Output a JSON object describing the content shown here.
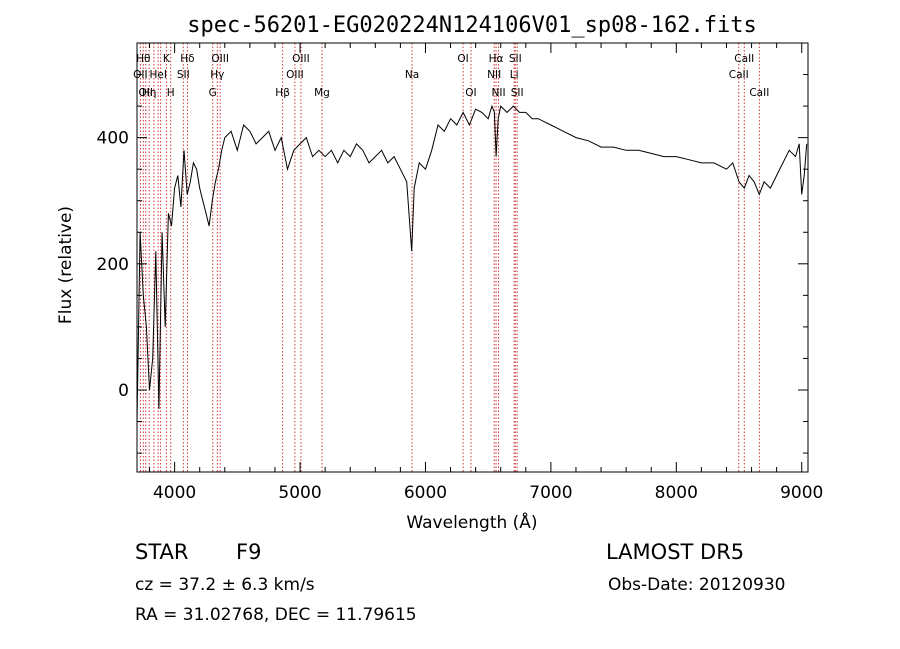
{
  "chart_data": {
    "type": "line",
    "title": "spec-56201-EG020224N124106V01_sp08-162.fits",
    "xlabel": "Wavelength (Å)",
    "ylabel": "Flux (relative)",
    "xlim": [
      3700,
      9050
    ],
    "ylim": [
      -130,
      550
    ],
    "xticks": [
      4000,
      5000,
      6000,
      7000,
      8000,
      9000
    ],
    "yticks": [
      0,
      200,
      400
    ],
    "x_minor_step": 200,
    "y_minor_step": 50,
    "grid": false,
    "line_color": "#000000",
    "marker_color": "#cc2222",
    "spectrum": {
      "x": [
        3700,
        3725,
        3750,
        3775,
        3800,
        3825,
        3850,
        3875,
        3900,
        3925,
        3950,
        3975,
        4000,
        4025,
        4050,
        4075,
        4100,
        4125,
        4150,
        4175,
        4200,
        4225,
        4250,
        4275,
        4300,
        4325,
        4350,
        4375,
        4400,
        4450,
        4500,
        4550,
        4600,
        4650,
        4700,
        4750,
        4800,
        4850,
        4900,
        4950,
        5000,
        5050,
        5100,
        5150,
        5200,
        5250,
        5300,
        5350,
        5400,
        5450,
        5500,
        5550,
        5600,
        5650,
        5700,
        5750,
        5800,
        5850,
        5890,
        5910,
        5950,
        6000,
        6050,
        6100,
        6150,
        6200,
        6250,
        6300,
        6350,
        6400,
        6450,
        6500,
        6530,
        6550,
        6563,
        6580,
        6600,
        6650,
        6700,
        6750,
        6800,
        6850,
        6900,
        6950,
        7000,
        7100,
        7200,
        7300,
        7400,
        7500,
        7600,
        7700,
        7800,
        7900,
        8000,
        8100,
        8200,
        8300,
        8400,
        8450,
        8500,
        8542,
        8580,
        8620,
        8662,
        8700,
        8750,
        8800,
        8850,
        8900,
        8950,
        8980,
        9000,
        9020,
        9040
      ],
      "y": [
        -50,
        250,
        150,
        100,
        0,
        50,
        220,
        -30,
        250,
        100,
        280,
        260,
        320,
        340,
        290,
        380,
        310,
        330,
        360,
        350,
        320,
        300,
        280,
        260,
        300,
        330,
        350,
        380,
        400,
        410,
        380,
        420,
        410,
        390,
        400,
        410,
        380,
        400,
        350,
        380,
        390,
        400,
        370,
        380,
        370,
        380,
        360,
        380,
        370,
        390,
        380,
        360,
        370,
        380,
        360,
        370,
        350,
        330,
        220,
        320,
        360,
        350,
        380,
        420,
        410,
        430,
        420,
        440,
        420,
        445,
        440,
        430,
        450,
        440,
        370,
        430,
        450,
        440,
        450,
        440,
        440,
        430,
        430,
        425,
        420,
        410,
        400,
        395,
        385,
        385,
        380,
        380,
        375,
        370,
        370,
        365,
        360,
        360,
        350,
        360,
        330,
        320,
        340,
        330,
        310,
        330,
        320,
        340,
        360,
        380,
        370,
        390,
        310,
        340,
        390
      ]
    },
    "lines": [
      {
        "x": 3727,
        "label": "OII",
        "row": 2
      },
      {
        "x": 3750,
        "label": "Hθ",
        "row": 1
      },
      {
        "x": 3770,
        "label": "OII",
        "row": 3
      },
      {
        "x": 3797,
        "label": "Hη",
        "row": 3
      },
      {
        "x": 3835,
        "label": "",
        "row": 0
      },
      {
        "x": 3869,
        "label": "HeI",
        "row": 2
      },
      {
        "x": 3889,
        "label": "",
        "row": 0
      },
      {
        "x": 3934,
        "label": "K",
        "row": 1
      },
      {
        "x": 3969,
        "label": "H",
        "row": 3
      },
      {
        "x": 4069,
        "label": "SII",
        "row": 2
      },
      {
        "x": 4102,
        "label": "Hδ",
        "row": 1
      },
      {
        "x": 4304,
        "label": "G",
        "row": 3
      },
      {
        "x": 4340,
        "label": "Hγ",
        "row": 2
      },
      {
        "x": 4363,
        "label": "OIII",
        "row": 1
      },
      {
        "x": 4861,
        "label": "Hβ",
        "row": 3
      },
      {
        "x": 4959,
        "label": "OIII",
        "row": 2
      },
      {
        "x": 5007,
        "label": "OIII",
        "row": 1
      },
      {
        "x": 5175,
        "label": "Mg",
        "row": 3
      },
      {
        "x": 5893,
        "label": "Na",
        "row": 2
      },
      {
        "x": 6300,
        "label": "OI",
        "row": 1
      },
      {
        "x": 6363,
        "label": "OI",
        "row": 3
      },
      {
        "x": 6548,
        "label": "NII",
        "row": 2
      },
      {
        "x": 6563,
        "label": "Hα",
        "row": 1
      },
      {
        "x": 6583,
        "label": "NII",
        "row": 3
      },
      {
        "x": 6707,
        "label": "Li",
        "row": 2
      },
      {
        "x": 6716,
        "label": "SII",
        "row": 1
      },
      {
        "x": 6731,
        "label": "SII",
        "row": 3
      },
      {
        "x": 8498,
        "label": "CaII",
        "row": 2
      },
      {
        "x": 8542,
        "label": "CaII",
        "row": 1
      },
      {
        "x": 8662,
        "label": "CaII",
        "row": 3
      }
    ]
  },
  "info": {
    "object_class": "STAR",
    "subclass": "F9",
    "survey": "LAMOST DR5",
    "redshift_text": "cz = 37.2 ± 6.3 km/s",
    "obs_date": "Obs-Date: 20120930",
    "coords": "RA =  31.02768, DEC =  11.79615"
  }
}
